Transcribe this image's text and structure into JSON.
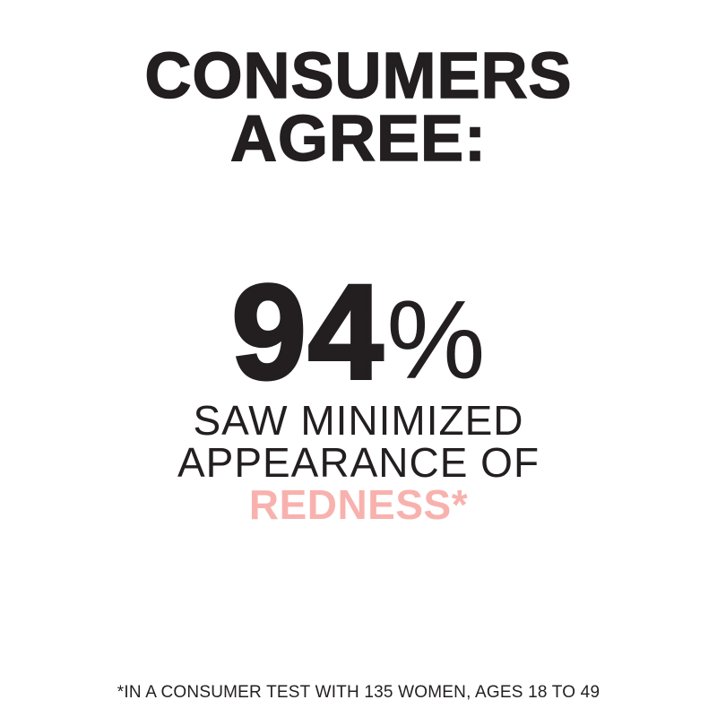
{
  "colors": {
    "background": "#ffffff",
    "text": "#231f20",
    "accent_pink": "#f8b2ae"
  },
  "headline": {
    "line1": "CONSUMERS",
    "line2": "AGREE:"
  },
  "stat": {
    "value": "94",
    "unit": "%"
  },
  "claim": {
    "line1": "SAW MINIMIZED",
    "line2": "APPEARANCE OF",
    "line3": "REDNESS*"
  },
  "footnote": "*IN A CONSUMER TEST WITH 135 WOMEN, AGES 18 TO 49"
}
